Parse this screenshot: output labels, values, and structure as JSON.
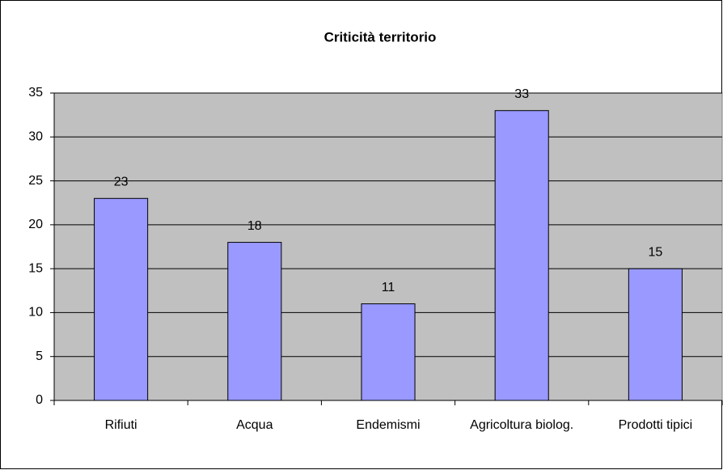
{
  "chart_data": {
    "type": "bar",
    "title": "Criticità territorio",
    "categories": [
      "Rifiuti",
      "Acqua",
      "Endemismi",
      "Agricoltura biolog.",
      "Prodotti tipici"
    ],
    "values": [
      23,
      18,
      11,
      33,
      15
    ],
    "color": "#9999ff",
    "plot_background": "#c0c0c0",
    "ylim": [
      0,
      35
    ],
    "yticks": [
      0,
      5,
      10,
      15,
      20,
      25,
      30,
      35
    ],
    "grid": true,
    "data_labels": true
  }
}
